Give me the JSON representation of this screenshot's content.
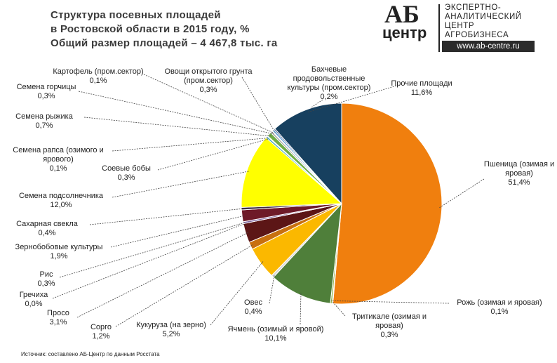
{
  "header": {
    "title_lines": [
      "Структура посевных площадей",
      "в Ростовской области в 2015 году, %",
      "Общий размер площадей – 4 467,8 тыс. га"
    ],
    "logo": {
      "mark": "АБ",
      "word": "центр",
      "lines": [
        "ЭКСПЕРТНО-",
        "АНАЛИТИЧЕСКИЙ",
        "ЦЕНТР",
        "АГРОБИЗНЕСА"
      ],
      "url": "www.ab-centre.ru"
    }
  },
  "source": "Источник: составлено АБ-Центр по данным Росстата",
  "chart_data": {
    "type": "pie",
    "categories": [
      "Пшеница (озимая и яровая)",
      "Рожь (озимая и яровая)",
      "Тритикале (озимая и яровая)",
      "Ячмень (озимый и яровой)",
      "Овес",
      "Кукуруза (на зерно)",
      "Сорго",
      "Просо",
      "Гречиха",
      "Рис",
      "Зернобобовые культуры",
      "Сахарная свекла",
      "Семена подсолнечника",
      "Соевые бобы",
      "Семена рапса (озимого и ярового)",
      "Семена рыжика",
      "Семена горчицы",
      "Картофель (пром.сектор)",
      "Овощи открытого грунта (пром.сектор)",
      "Бахчевые продовольственные культуры (пром.сектор)",
      "Прочие площади"
    ],
    "values": [
      51.4,
      0.1,
      0.3,
      10.1,
      0.4,
      5.2,
      1.2,
      3.1,
      0.0,
      0.3,
      1.9,
      0.4,
      12.0,
      0.3,
      0.1,
      0.7,
      0.3,
      0.1,
      0.3,
      0.2,
      11.6
    ],
    "value_labels": [
      "51,4%",
      "0,1%",
      "0,3%",
      "10,1%",
      "0,4%",
      "5,2%",
      "1,2%",
      "3,1%",
      "0,0%",
      "0,3%",
      "1,9%",
      "0,4%",
      "12,0%",
      "0,3%",
      "0,1%",
      "0,7%",
      "0,3%",
      "0,1%",
      "0,3%",
      "0,2%",
      "11,6%"
    ],
    "colors": [
      "#f07f0e",
      "#c0504d",
      "#9bbb59",
      "#4f7f3a",
      "#d9d9d9",
      "#fbb800",
      "#c8700f",
      "#5c1616",
      "#7f7f7f",
      "#8064a2",
      "#6e1a28",
      "#3b2b45",
      "#ffff00",
      "#4bacc6",
      "#f79646",
      "#70ad47",
      "#a5a5a5",
      "#ffc000",
      "#5b9bd5",
      "#264478",
      "#17405f"
    ]
  }
}
